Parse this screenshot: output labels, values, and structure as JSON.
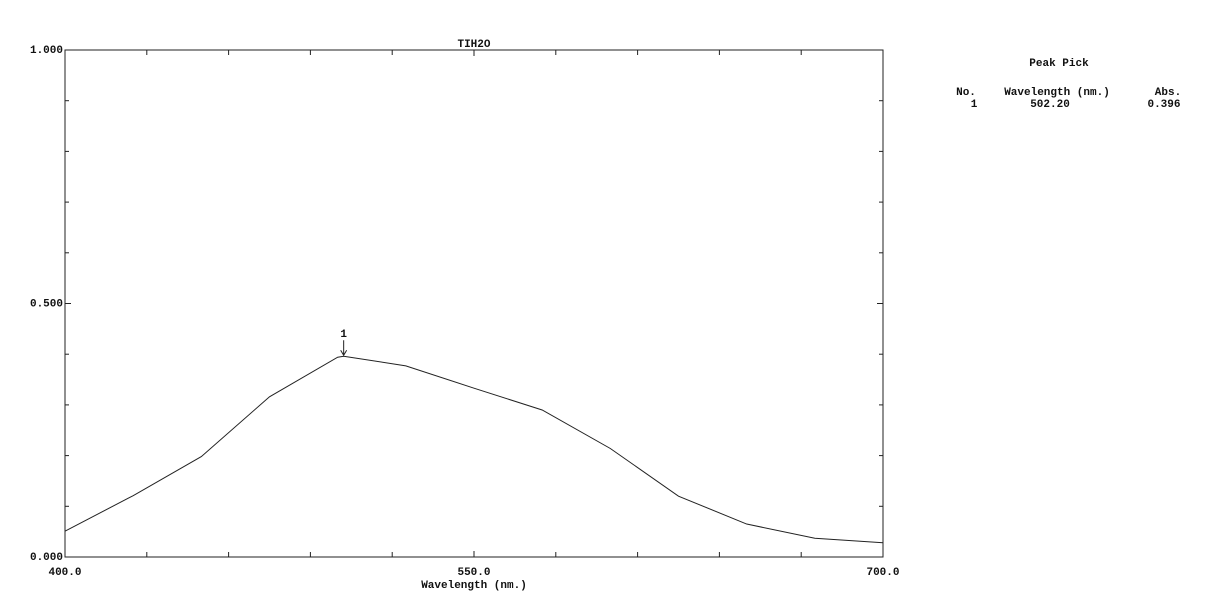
{
  "chart_data": {
    "type": "line",
    "title": "TIH2O",
    "xlabel": "Wavelength (nm.)",
    "x": [
      400,
      425,
      450,
      475,
      500,
      502.2,
      525,
      550,
      575,
      600,
      625,
      650,
      675,
      700
    ],
    "series": [
      {
        "color": "#222222",
        "values": [
          0.051,
          0.121,
          0.198,
          0.316,
          0.394,
          0.396,
          0.377,
          0.333,
          0.29,
          0.214,
          0.12,
          0.065,
          0.037,
          0.028
        ]
      }
    ],
    "xlim": [
      400,
      700
    ],
    "ylim": [
      0,
      1
    ],
    "xticks": [
      {
        "value": 400,
        "label": "400.0"
      },
      {
        "value": 550,
        "label": "550.0"
      },
      {
        "value": 700,
        "label": "700.0"
      }
    ],
    "yticks": [
      {
        "value": 0,
        "label": "0.000"
      },
      {
        "value": 0.5,
        "label": "0.500"
      },
      {
        "value": 1,
        "label": "1.000"
      }
    ],
    "xminor": [
      430,
      460,
      490,
      520,
      580,
      610,
      640,
      670
    ],
    "yminor": [
      0.1,
      0.2,
      0.3,
      0.4,
      0.6,
      0.7,
      0.8,
      0.9
    ],
    "annotations": [
      {
        "label": "1",
        "x": 502.2,
        "y": 0.396
      }
    ],
    "peak_table": {
      "title": "Peak Pick",
      "columns": [
        "No.",
        "Wavelength (nm.)",
        "Abs."
      ],
      "rows": [
        [
          "1",
          "502.20",
          "0.396"
        ]
      ]
    }
  }
}
